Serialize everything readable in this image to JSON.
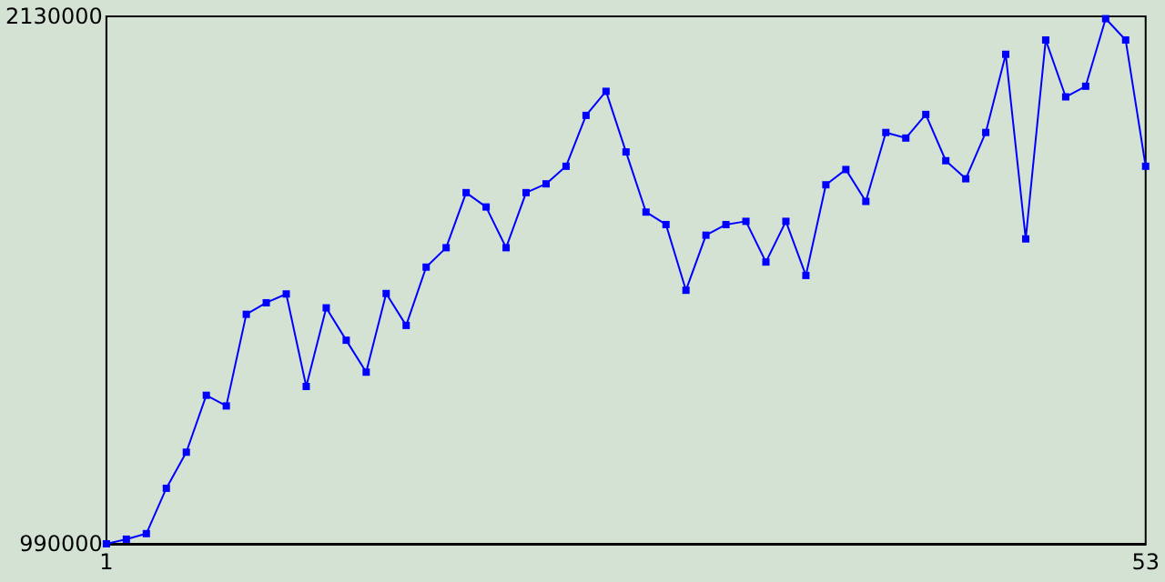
{
  "chart_data": {
    "type": "line",
    "x": [
      1,
      2,
      3,
      4,
      5,
      6,
      7,
      8,
      9,
      10,
      11,
      12,
      13,
      14,
      15,
      16,
      17,
      18,
      19,
      20,
      21,
      22,
      23,
      24,
      25,
      26,
      27,
      28,
      29,
      30,
      31,
      32,
      33,
      34,
      35,
      36,
      37,
      38,
      39,
      40,
      41,
      42,
      43,
      44,
      45,
      46,
      47,
      48,
      49,
      50,
      51,
      52,
      53
    ],
    "series": [
      {
        "color": "#0000ff",
        "values": [
          990000,
          1000000,
          1012000,
          1110000,
          1188000,
          1311000,
          1288000,
          1486000,
          1511000,
          1530000,
          1330000,
          1500000,
          1430000,
          1361000,
          1531000,
          1462000,
          1588000,
          1630000,
          1749000,
          1718000,
          1630000,
          1749000,
          1768000,
          1806000,
          1916000,
          1968000,
          1837000,
          1707000,
          1680000,
          1538000,
          1657000,
          1680000,
          1687000,
          1599000,
          1687000,
          1570000,
          1766000,
          1799000,
          1730000,
          1879000,
          1867000,
          1918000,
          1818000,
          1779000,
          1879000,
          2048000,
          1649000,
          2079000,
          1956000,
          1979000,
          2125000,
          2079000,
          1806000
        ]
      }
    ],
    "xlim": [
      1,
      53
    ],
    "xticks": [
      1,
      53
    ],
    "ylim": [
      990000,
      2130000
    ],
    "yticks": [
      990000,
      2130000
    ],
    "grid": false,
    "marker": "square",
    "line_style": "solid"
  }
}
